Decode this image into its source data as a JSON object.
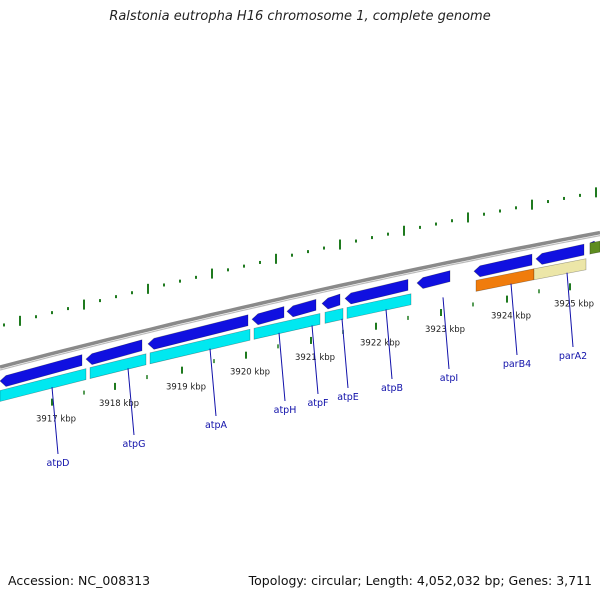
{
  "title": "Ralstonia eutropha H16 chromosome 1, complete genome",
  "footer": {
    "accession": "Accession: NC_008313",
    "summary": "Topology: circular; Length: 4,052,032 bp; Genes: 3,711"
  },
  "colors": {
    "backbone": "#8a8a8a",
    "gene_cds": "#1010e0",
    "cds_feature": "#00e8f0",
    "orange_feature": "#f07c0c",
    "beige_feature": "#ece6a8",
    "green_feature": "#5e8c20",
    "tick": "#1f7a1f",
    "label": "#1111aa"
  },
  "scale_labels": [
    "3917 kbp",
    "3918 kbp",
    "3919 kbp",
    "3920 kbp",
    "3921 kbp",
    "3922 kbp",
    "3923 kbp",
    "3924 kbp",
    "3925 kbp"
  ],
  "gene_labels": [
    "atpD",
    "atpG",
    "atpA",
    "atpH",
    "atpF",
    "atpE",
    "atpB",
    "atpI",
    "parB4",
    "parA2"
  ]
}
